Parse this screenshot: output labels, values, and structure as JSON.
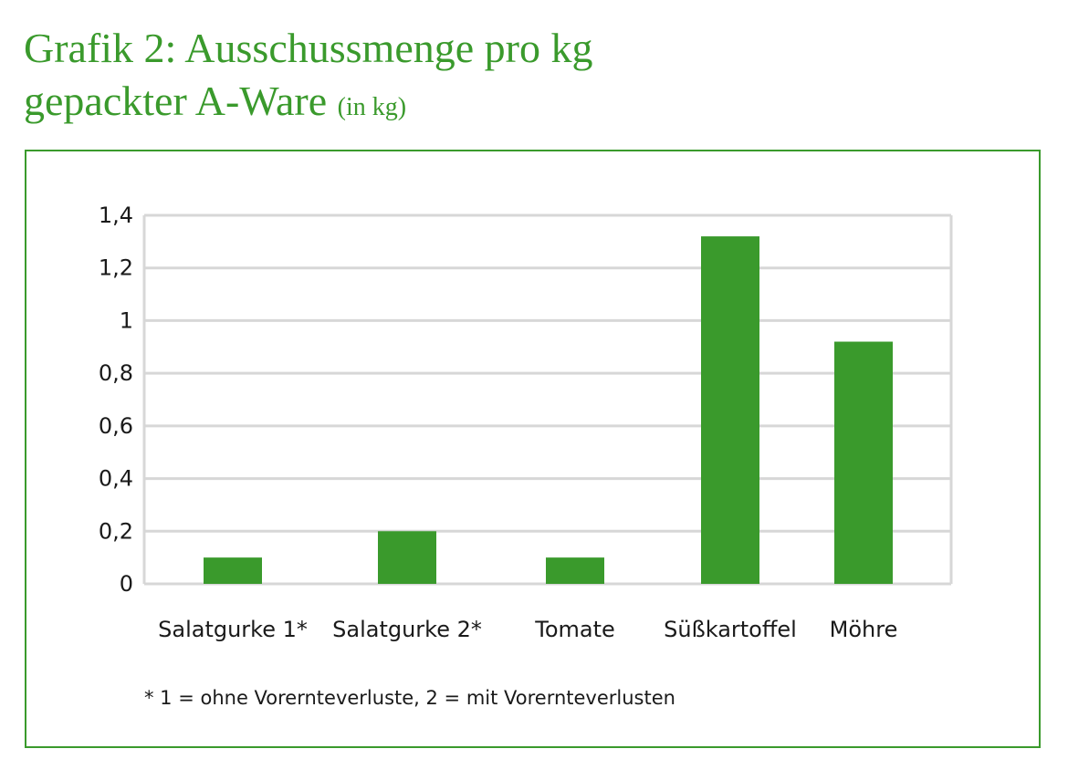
{
  "chart_data": {
    "type": "bar",
    "title_line1": "Grafik 2: Ausschussmenge pro kg",
    "title_line2": "gepackter A-Ware",
    "title_unit": "(in kg)",
    "categories": [
      "Salatgurke 1*",
      "Salatgurke 2*",
      "Tomate",
      "Süßkartoffel",
      "Möhre"
    ],
    "values": [
      0.1,
      0.2,
      0.1,
      1.32,
      0.92
    ],
    "ylim": [
      0,
      1.4
    ],
    "yticks": [
      0,
      0.2,
      0.4,
      0.6,
      0.8,
      1,
      1.2,
      1.4
    ],
    "ytick_labels": [
      "0",
      "0,2",
      "0,4",
      "0,6",
      "0,8",
      "1",
      "1,2",
      "1,4"
    ],
    "grid": true,
    "legend": "none",
    "footnote": "* 1 = ohne Vorernteverluste, 2 = mit Vorernteverlusten",
    "colors": {
      "bar": "#3a9a2c",
      "title": "#3a9a2c",
      "frame": "#3a9a2c",
      "grid": "#d7d7d7"
    }
  }
}
